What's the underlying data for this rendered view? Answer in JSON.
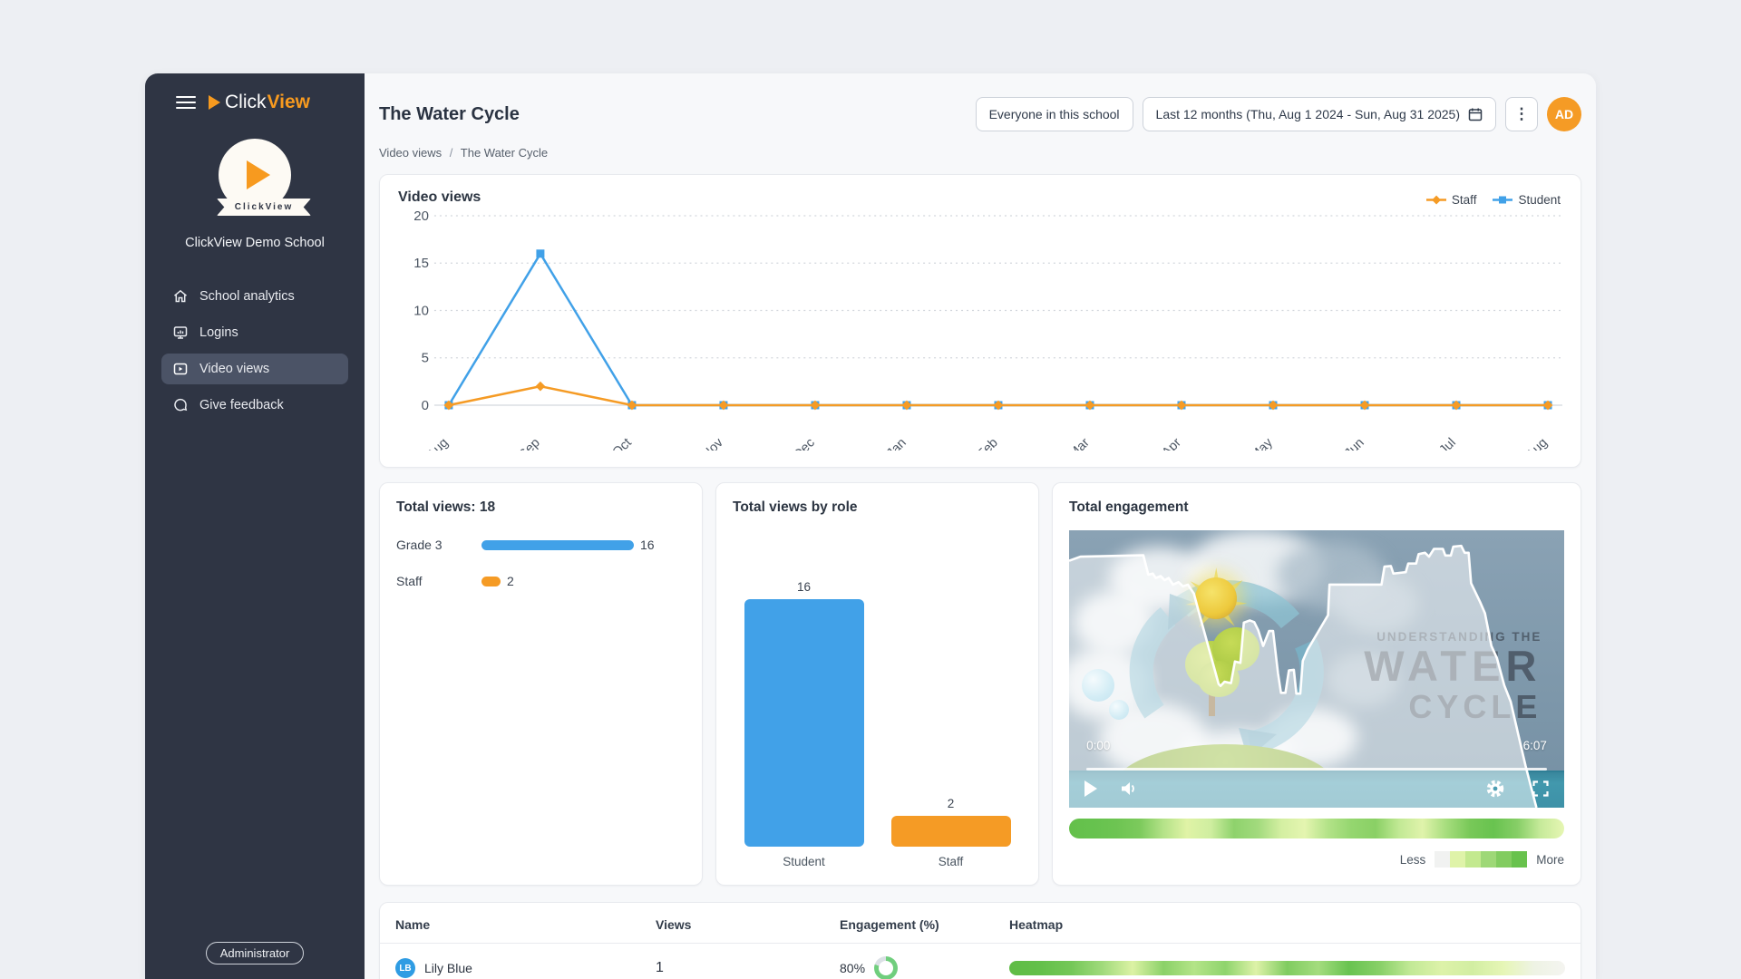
{
  "app": {
    "brand_click": "Click",
    "brand_view": "View",
    "ribbon_text": "ClickView",
    "school_name": "ClickView Demo School",
    "role_badge": "Administrator"
  },
  "sidebar": {
    "items": [
      {
        "label": "School analytics"
      },
      {
        "label": "Logins"
      },
      {
        "label": "Video views"
      },
      {
        "label": "Give feedback"
      }
    ]
  },
  "header": {
    "title": "The Water Cycle",
    "audience_button": "Everyone in this school",
    "date_range_button": "Last 12 months (Thu, Aug 1 2024 - Sun, Aug 31 2025)",
    "avatar_initials": "AD"
  },
  "breadcrumb": {
    "parent": "Video views",
    "separator": "/",
    "current": "The Water Cycle"
  },
  "colors": {
    "brand_orange": "#f79a1f",
    "staff_orange": "#f59b25",
    "student_blue": "#41a1e8",
    "sidebar_bg": "#2f3544",
    "sidebar_active": "#4b5366",
    "ring_green": "#70ce7d",
    "lb_avatar_blue": "#2f9ce3"
  },
  "chart_data": [
    {
      "id": "video_views_line",
      "type": "line",
      "title": "Video views",
      "categories": [
        "Aug",
        "Sep",
        "Oct",
        "Nov",
        "Dec",
        "Jan",
        "Feb",
        "Mar",
        "Apr",
        "May",
        "Jun",
        "Jul",
        "Aug"
      ],
      "series": [
        {
          "name": "Staff",
          "color": "#f59b25",
          "marker": "diamond",
          "values": [
            0,
            2,
            0,
            0,
            0,
            0,
            0,
            0,
            0,
            0,
            0,
            0,
            0
          ]
        },
        {
          "name": "Student",
          "color": "#41a1e8",
          "marker": "square",
          "values": [
            0,
            16,
            0,
            0,
            0,
            0,
            0,
            0,
            0,
            0,
            0,
            0,
            0
          ]
        }
      ],
      "ylim": [
        0,
        20
      ],
      "yticks": [
        0,
        5,
        10,
        15,
        20
      ],
      "grid": "dotted-horizontal",
      "legend_position": "top-right"
    },
    {
      "id": "total_views_bars",
      "type": "bar",
      "title": "Total views: 18",
      "categories": [
        "Grade 3",
        "Staff"
      ],
      "values": [
        16,
        2
      ],
      "colors": [
        "#41a1e8",
        "#f59b25"
      ],
      "max": 16
    },
    {
      "id": "views_by_role",
      "type": "bar",
      "title": "Total views by role",
      "categories": [
        "Student",
        "Staff"
      ],
      "values": [
        16,
        2
      ],
      "colors": [
        "#41a1e8",
        "#f59b25"
      ],
      "max": 16
    },
    {
      "id": "engagement_overlay",
      "type": "area",
      "title": "Total engagement",
      "unit": "percent-of-thumbnail",
      "points_pct": [
        [
          0,
          11
        ],
        [
          2.3,
          9.5
        ],
        [
          15,
          9
        ],
        [
          16,
          16
        ],
        [
          16.9,
          15.6
        ],
        [
          17.5,
          17.2
        ],
        [
          18.5,
          16.5
        ],
        [
          19.3,
          18
        ],
        [
          20.1,
          17.2
        ],
        [
          21,
          19.6
        ],
        [
          22.1,
          18.7
        ],
        [
          23,
          20.2
        ],
        [
          24,
          19.6
        ],
        [
          25.2,
          22.8
        ],
        [
          26.1,
          28.8
        ],
        [
          30.2,
          55.4
        ],
        [
          30.6,
          56.1
        ],
        [
          31.4,
          54.6
        ],
        [
          32.7,
          55.1
        ],
        [
          33.5,
          47.3
        ],
        [
          34.6,
          47.8
        ],
        [
          35.3,
          33.3
        ],
        [
          36.5,
          32.5
        ],
        [
          37.4,
          33.1
        ],
        [
          38.2,
          36
        ],
        [
          39.2,
          41.7
        ],
        [
          40.4,
          36.3
        ],
        [
          41.2,
          36.3
        ],
        [
          42.2,
          51.6
        ],
        [
          42.8,
          58.6
        ],
        [
          43.7,
          58.6
        ],
        [
          44.4,
          50.5
        ],
        [
          45.4,
          50.3
        ],
        [
          45.9,
          58.9
        ],
        [
          46.7,
          58.9
        ],
        [
          47.2,
          47.1
        ],
        [
          48.2,
          43
        ],
        [
          52.3,
          30.6
        ],
        [
          52.6,
          19.6
        ],
        [
          54.6,
          19.6
        ],
        [
          63.1,
          19.6
        ],
        [
          63.7,
          13.1
        ],
        [
          65,
          12.9
        ],
        [
          65.5,
          15.6
        ],
        [
          68,
          15.1
        ],
        [
          68.5,
          12
        ],
        [
          70.1,
          12
        ],
        [
          70.6,
          8.6
        ],
        [
          71.9,
          8.1
        ],
        [
          72.7,
          9.5
        ],
        [
          73.7,
          6.7
        ],
        [
          75.5,
          6.7
        ],
        [
          76,
          9.1
        ],
        [
          77.1,
          9.1
        ],
        [
          77.6,
          5.9
        ],
        [
          79.2,
          5.6
        ],
        [
          79.9,
          8.1
        ],
        [
          80.7,
          8.1
        ],
        [
          81.2,
          19.1
        ],
        [
          83,
          25.8
        ],
        [
          84,
          29.9
        ],
        [
          85.3,
          41.7
        ],
        [
          86.4,
          46
        ],
        [
          87.9,
          55.9
        ],
        [
          89.2,
          61.8
        ],
        [
          90.8,
          74.2
        ],
        [
          92.2,
          84.9
        ],
        [
          93.3,
          92.5
        ],
        [
          94.4,
          100
        ]
      ]
    },
    {
      "id": "engagement_heatmap",
      "type": "heatmap",
      "stops": [
        "#64c04a",
        "#66c24e",
        "#6dc452",
        "#7cca5c",
        "#b4e288",
        "#e0f3a6",
        "#cfeea0",
        "#8ed26c",
        "#a2da7d",
        "#d4efa2",
        "#e4f5b0",
        "#b2e287",
        "#94d66f",
        "#8ad065",
        "#c2e995",
        "#e0f3ab",
        "#a6dd7d",
        "#78c858",
        "#68c34f",
        "#86ce66",
        "#c6ea9a",
        "#e6f6b3"
      ]
    },
    {
      "id": "viewer_heatmap",
      "type": "heatmap",
      "stops": [
        "#5fbc45",
        "#63c04a",
        "#74c757",
        "#a0da7b",
        "#dcf2a4",
        "#8bd168",
        "#b4e488",
        "#8fd46d",
        "#def2a8",
        "#80cc60",
        "#a4dc7e",
        "#68c350",
        "#88d068",
        "#c2e996",
        "#ddf2a9",
        "#d2eea2",
        "#e6f6b6",
        "#eef3e4",
        "#f4f4f0"
      ]
    }
  ],
  "total_views_card": {
    "title": "Total views: 18"
  },
  "role_card": {
    "title": "Total views by role"
  },
  "engagement_card": {
    "title": "Total engagement",
    "video": {
      "current_time": "0:00",
      "duration": "6:07",
      "thumb_line1": "UNDERSTANDING THE",
      "thumb_line2": "WATER",
      "thumb_line3": "CYCLE"
    },
    "legend": {
      "less": "Less",
      "more": "More",
      "swatches": [
        "#f1f2f1",
        "#dff3a9",
        "#c3e98f",
        "#9ed877",
        "#82cc60",
        "#68c24d"
      ]
    }
  },
  "table": {
    "columns": [
      "Name",
      "Views",
      "Engagement (%)",
      "Heatmap"
    ],
    "rows": [
      {
        "initials": "LB",
        "name": "Lily Blue",
        "views": "1",
        "engagement_label": "80%",
        "engagement_value": 80
      }
    ]
  }
}
